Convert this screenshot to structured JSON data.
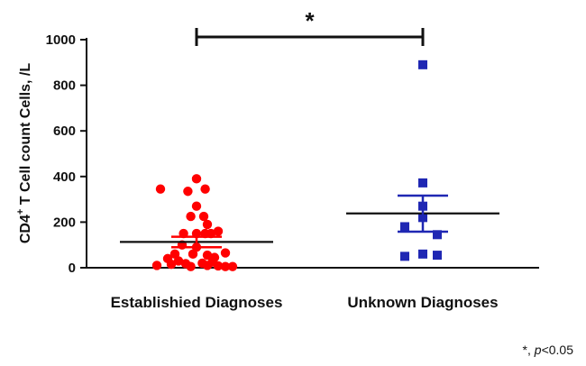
{
  "chart_data": {
    "type": "scatter",
    "ylabel": "CD4+ T Cell count Cells, /L",
    "ylabel_main": "CD4",
    "ylabel_sup": "+",
    "ylabel_rest": " T Cell count Cells, /L",
    "ylim": [
      0,
      1000
    ],
    "yticks": [
      "0",
      "200",
      "400",
      "600",
      "800",
      "1000"
    ],
    "categories": [
      "Establishied Diagnoses",
      "Unknown Diagnoses"
    ],
    "series": [
      {
        "category": "Establishied Diagnoses",
        "marker": "circle",
        "color": "#ff0000",
        "mean": 113,
        "sem_low": 90,
        "sem_high": 136,
        "points": [
          {
            "x": -0.5,
            "y": 345
          },
          {
            "x": -0.55,
            "y": 10
          },
          {
            "x": -0.4,
            "y": 40
          },
          {
            "x": -0.35,
            "y": 15
          },
          {
            "x": -0.25,
            "y": 30
          },
          {
            "x": -0.15,
            "y": 18
          },
          {
            "x": -0.08,
            "y": 5
          },
          {
            "x": 0.0,
            "y": 150
          },
          {
            "x": 0.08,
            "y": 20
          },
          {
            "x": 0.15,
            "y": 10
          },
          {
            "x": 0.22,
            "y": 25
          },
          {
            "x": 0.3,
            "y": 8
          },
          {
            "x": 0.4,
            "y": 5
          },
          {
            "x": 0.5,
            "y": 5
          },
          {
            "x": -0.12,
            "y": 335
          },
          {
            "x": 0.0,
            "y": 390
          },
          {
            "x": 0.12,
            "y": 345
          },
          {
            "x": 0.0,
            "y": 270
          },
          {
            "x": -0.08,
            "y": 225
          },
          {
            "x": 0.1,
            "y": 225
          },
          {
            "x": -0.18,
            "y": 150
          },
          {
            "x": 0.12,
            "y": 150
          },
          {
            "x": 0.2,
            "y": 150
          },
          {
            "x": 0.3,
            "y": 160
          },
          {
            "x": 0.15,
            "y": 190
          },
          {
            "x": -0.2,
            "y": 100
          },
          {
            "x": 0.0,
            "y": 90
          },
          {
            "x": -0.05,
            "y": 60
          },
          {
            "x": 0.15,
            "y": 55
          },
          {
            "x": 0.25,
            "y": 45
          },
          {
            "x": 0.4,
            "y": 65
          },
          {
            "x": -0.3,
            "y": 60
          }
        ]
      },
      {
        "category": "Unknown Diagnoses",
        "marker": "square",
        "color": "#1f27b3",
        "mean": 238,
        "sem_low": 158,
        "sem_high": 316,
        "points": [
          {
            "x": 0.0,
            "y": 890
          },
          {
            "x": 0.0,
            "y": 372
          },
          {
            "x": 0.0,
            "y": 270
          },
          {
            "x": 0.0,
            "y": 220
          },
          {
            "x": -0.25,
            "y": 180
          },
          {
            "x": 0.2,
            "y": 145
          },
          {
            "x": -0.25,
            "y": 50
          },
          {
            "x": 0.0,
            "y": 60
          },
          {
            "x": 0.2,
            "y": 55
          }
        ]
      }
    ],
    "significance": {
      "symbol": "*",
      "between": [
        "Establishied Diagnoses",
        "Unknown Diagnoses"
      ]
    }
  },
  "footnote": {
    "prefix": "*, ",
    "p": "p",
    "suffix": "<0.05"
  }
}
